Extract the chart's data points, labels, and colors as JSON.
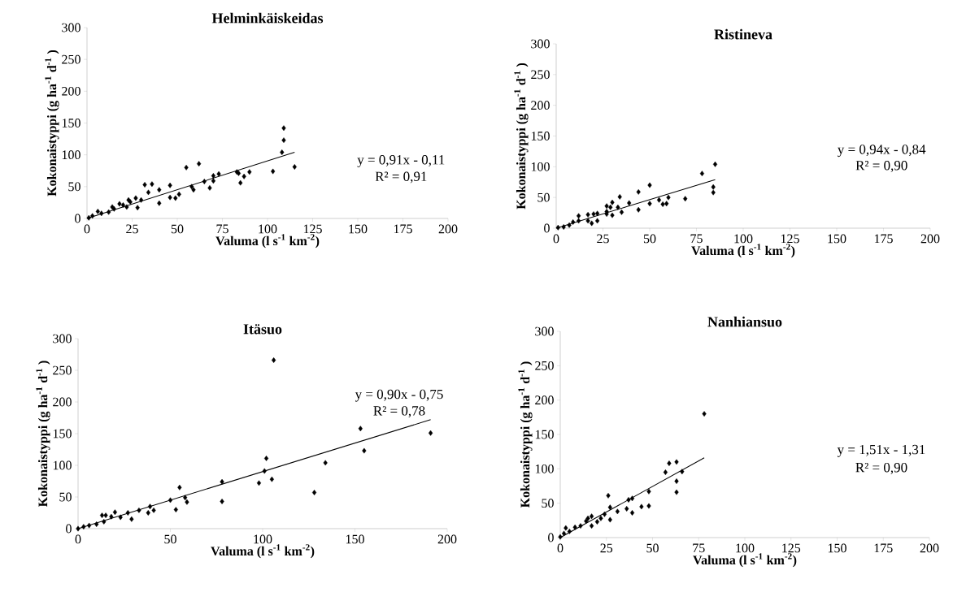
{
  "chart_data": [
    {
      "type": "scatter",
      "title": "Helminkäiskeidas",
      "xlabel": "Valuma (l  s$^{-1}$ km$^{-2}$)",
      "ylabel": "Kokonaistyppi (g ha$^{-1}$ d$^{-1}$ )",
      "xlim": [
        0,
        200
      ],
      "ylim": [
        0,
        300
      ],
      "xticks": [
        0,
        25,
        50,
        75,
        100,
        125,
        150,
        175,
        200
      ],
      "yticks": [
        0,
        50,
        100,
        150,
        200,
        250,
        300
      ],
      "annotations": [
        "y = 0,91x - 0,11",
        "R² = 0,91"
      ],
      "series": [
        {
          "marker": "diamond",
          "color": "#000000",
          "x": [
            109,
            109,
            108,
            115,
            103,
            90,
            87,
            85,
            84,
            83,
            73,
            70,
            70,
            68,
            65,
            62,
            55,
            59,
            58,
            51,
            49,
            46,
            46,
            40,
            40,
            36,
            34,
            32,
            30,
            28,
            27,
            24,
            23,
            22,
            20,
            18,
            15,
            14,
            12,
            8,
            6,
            3,
            1
          ],
          "values": [
            142,
            123,
            104,
            81,
            74,
            73,
            66,
            56,
            71,
            73,
            70,
            67,
            59,
            48,
            58,
            86,
            80,
            45,
            50,
            38,
            32,
            52,
            33,
            45,
            24,
            54,
            41,
            53,
            29,
            17,
            32,
            26,
            29,
            18,
            21,
            23,
            15,
            18,
            10,
            8,
            11,
            4,
            1
          ]
        },
        {
          "type": "line",
          "color": "#000000",
          "x": [
            0,
            115
          ],
          "values": [
            0,
            104
          ]
        }
      ]
    },
    {
      "type": "scatter",
      "title": "Ristineva",
      "xlabel": "Valuma (l  s$^{-1}$ km$^{-2}$)",
      "ylabel": "Kokonaistyppi (g ha$^{-1}$ d$^{-1}$ )",
      "xlim": [
        0,
        200
      ],
      "ylim": [
        0,
        300
      ],
      "xticks": [
        0,
        25,
        50,
        75,
        100,
        125,
        150,
        175,
        200
      ],
      "yticks": [
        0,
        50,
        100,
        150,
        200,
        250,
        300
      ],
      "annotations": [
        "y = 0,94x - 0,84",
        "R² = 0,90"
      ],
      "series": [
        {
          "marker": "diamond",
          "color": "#000000",
          "x": [
            85,
            84,
            84,
            78,
            69,
            60,
            59,
            57,
            55,
            50,
            50,
            44,
            44,
            39,
            34,
            35,
            33,
            30,
            30,
            29,
            27,
            27,
            27,
            22,
            22,
            20,
            19,
            17,
            17,
            12,
            12,
            9,
            7,
            4,
            1
          ],
          "values": [
            104,
            67,
            58,
            89,
            48,
            50,
            40,
            39,
            46,
            70,
            40,
            59,
            30,
            41,
            51,
            26,
            34,
            42,
            21,
            34,
            36,
            27,
            23,
            24,
            12,
            23,
            8,
            22,
            12,
            20,
            12,
            10,
            5,
            2,
            1
          ]
        },
        {
          "type": "line",
          "color": "#000000",
          "x": [
            0,
            85
          ],
          "values": [
            0,
            79
          ]
        }
      ]
    },
    {
      "type": "scatter",
      "title": "Itäsuo",
      "xlabel": "Valuma (l  s$^{-1}$ km$^{-2}$)",
      "ylabel": "Kokonaistyppi (g ha$^{-1}$ d$^{-1}$ )",
      "xlim": [
        0,
        200
      ],
      "ylim": [
        0,
        300
      ],
      "xticks": [
        0,
        50,
        100,
        150,
        200
      ],
      "yticks": [
        0,
        50,
        100,
        150,
        200,
        250,
        300
      ],
      "annotations": [
        "y = 0,90x - 0,75",
        "R² = 0,78"
      ],
      "series": [
        {
          "marker": "diamond",
          "color": "#000000",
          "x": [
            106,
            191,
            153,
            155,
            134,
            128,
            102,
            101,
            105,
            98,
            78,
            78,
            55,
            58,
            59,
            50,
            53,
            39,
            38,
            41,
            33,
            29,
            27,
            23,
            20,
            18,
            15,
            13,
            14,
            10,
            6,
            3,
            0
          ],
          "values": [
            266,
            151,
            158,
            123,
            104,
            57,
            111,
            91,
            78,
            72,
            74,
            43,
            65,
            49,
            42,
            45,
            30,
            35,
            25,
            29,
            29,
            15,
            25,
            18,
            26,
            19,
            21,
            21,
            11,
            7,
            5,
            3,
            0
          ]
        },
        {
          "type": "line",
          "color": "#000000",
          "x": [
            0,
            191
          ],
          "values": [
            0,
            172
          ]
        }
      ]
    },
    {
      "type": "scatter",
      "title": "Nanhiansuo",
      "xlabel": "Valuma (l  s$^{-1}$ km$^{-2}$)",
      "ylabel": "Kokonaistyppi (g ha$^{-1}$ d$^{-1}$ )",
      "xlim": [
        0,
        200
      ],
      "ylim": [
        0,
        300
      ],
      "xticks": [
        0,
        25,
        50,
        75,
        100,
        125,
        150,
        175,
        200
      ],
      "yticks": [
        0,
        50,
        100,
        150,
        200,
        250,
        300
      ],
      "annotations": [
        "y = 1,51x - 1,31",
        "R² = 0,90"
      ],
      "series": [
        {
          "marker": "diamond",
          "color": "#000000",
          "x": [
            78,
            63,
            59,
            57,
            66,
            63,
            63,
            48,
            48,
            44,
            39,
            37,
            39,
            36,
            31,
            27,
            26,
            27,
            24,
            22,
            20,
            17,
            15,
            17,
            14,
            11,
            8,
            5,
            3,
            2,
            0
          ],
          "values": [
            180,
            110,
            108,
            95,
            96,
            82,
            66,
            67,
            46,
            45,
            57,
            55,
            36,
            42,
            38,
            44,
            61,
            26,
            34,
            28,
            23,
            31,
            28,
            17,
            24,
            17,
            15,
            9,
            14,
            6,
            1
          ]
        },
        {
          "type": "line",
          "color": "#000000",
          "x": [
            0,
            78
          ],
          "values": [
            0,
            116
          ]
        }
      ]
    }
  ]
}
